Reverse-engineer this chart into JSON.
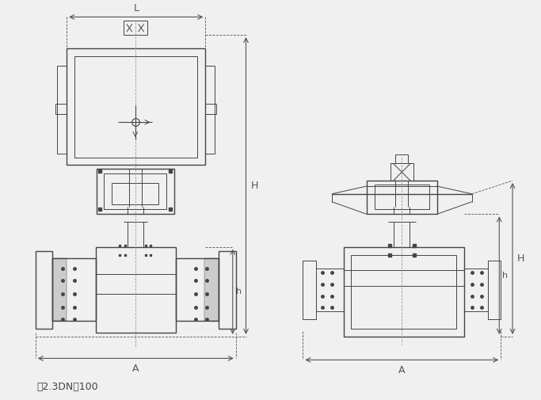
{
  "bg_color": "#f0f0f0",
  "line_color": "#444444",
  "dim_color": "#555555",
  "title_text": "图2.3DN＞100",
  "label_L": "L",
  "label_H": "H",
  "label_h": "h",
  "label_A": "A",
  "fig_width": 6.83,
  "fig_height": 5.05
}
